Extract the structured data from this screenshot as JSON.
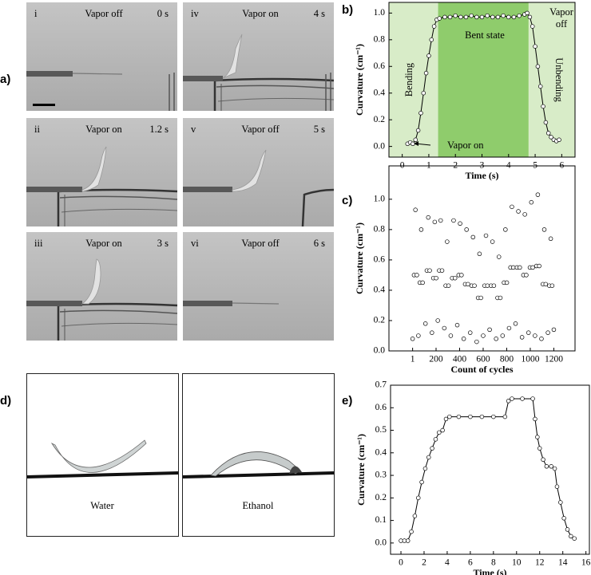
{
  "panel_labels": [
    "a)",
    "b)",
    "c)",
    "d)",
    "e)"
  ],
  "photos_a": [
    {
      "index": "i",
      "state": "Vapor off",
      "time": "0 s"
    },
    {
      "index": "iv",
      "state": "Vapor on",
      "time": "4 s"
    },
    {
      "index": "ii",
      "state": "Vapor on",
      "time": "1.2 s"
    },
    {
      "index": "v",
      "state": "Vapor off",
      "time": "5 s"
    },
    {
      "index": "iii",
      "state": "Vapor on",
      "time": "3 s"
    },
    {
      "index": "vi",
      "state": "Vapor off",
      "time": "6 s"
    }
  ],
  "photos_d": [
    "Water",
    "Ethanol"
  ],
  "chart_data": [
    {
      "type": "line",
      "xlabel": "Time (s)",
      "ylabel": "Curvature (cm⁻¹)",
      "background": "#d8ecc8",
      "shaded": [
        {
          "range": [
            1.35,
            4.75
          ],
          "color": "#8fcc6c"
        }
      ],
      "annotations": [
        "Bending",
        "Bent state",
        "Vapor",
        "off",
        "Unbending",
        "Vapor on"
      ],
      "x": [
        0.2,
        0.3,
        0.4,
        0.5,
        0.6,
        0.7,
        0.8,
        0.9,
        1.0,
        1.1,
        1.2,
        1.3,
        1.4,
        1.6,
        1.8,
        2.0,
        2.2,
        2.4,
        2.6,
        2.8,
        3.0,
        3.2,
        3.4,
        3.6,
        3.8,
        4.0,
        4.2,
        4.4,
        4.6,
        4.7,
        4.8,
        4.9,
        5.0,
        5.1,
        5.2,
        5.3,
        5.4,
        5.5,
        5.6,
        5.7,
        5.8,
        5.9
      ],
      "values": [
        0.02,
        0.03,
        0.02,
        0.05,
        0.12,
        0.25,
        0.4,
        0.55,
        0.68,
        0.8,
        0.9,
        0.95,
        0.96,
        0.97,
        0.97,
        0.98,
        0.97,
        0.97,
        0.98,
        0.97,
        0.97,
        0.98,
        0.97,
        0.97,
        0.98,
        0.97,
        0.97,
        0.98,
        0.99,
        1.0,
        0.97,
        0.9,
        0.75,
        0.6,
        0.45,
        0.3,
        0.18,
        0.1,
        0.07,
        0.05,
        0.04,
        0.05
      ],
      "color": "#000000",
      "marker": "open-circle",
      "xlim": [
        -0.5,
        6.5
      ],
      "ylim": [
        -0.08,
        1.08
      ],
      "xticks": [
        0,
        1,
        2,
        3,
        4,
        5,
        6
      ],
      "yticks": [
        {
          "value": 0,
          "label": "0.0"
        },
        0.2,
        0.4,
        0.6,
        0.8,
        {
          "value": 1,
          "label": "1.0"
        }
      ]
    },
    {
      "type": "scatter",
      "xlabel": "Count of cycles",
      "ylabel": "Curvature (cm⁻¹)",
      "x": [
        1,
        13,
        25,
        37,
        50,
        62,
        74,
        86,
        110,
        122,
        134,
        146,
        165,
        177,
        189,
        201,
        215,
        227,
        239,
        251,
        270,
        282,
        294,
        306,
        325,
        337,
        349,
        361,
        380,
        392,
        404,
        416,
        435,
        447,
        459,
        471,
        490,
        502,
        514,
        526,
        545,
        557,
        569,
        581,
        600,
        612,
        624,
        636,
        655,
        667,
        679,
        691,
        710,
        722,
        734,
        746,
        765,
        777,
        789,
        801,
        820,
        832,
        844,
        856,
        875,
        887,
        899,
        911,
        930,
        942,
        954,
        966,
        985,
        997,
        1009,
        1021,
        1040,
        1052,
        1064,
        1076,
        1095,
        1107,
        1119,
        1131,
        1150,
        1162,
        1174,
        1186,
        1200
      ],
      "values": [
        0.08,
        0.5,
        0.93,
        0.5,
        0.1,
        0.45,
        0.8,
        0.45,
        0.18,
        0.53,
        0.88,
        0.53,
        0.12,
        0.48,
        0.85,
        0.48,
        0.2,
        0.53,
        0.86,
        0.53,
        0.15,
        0.43,
        0.72,
        0.43,
        0.1,
        0.48,
        0.86,
        0.48,
        0.17,
        0.5,
        0.84,
        0.5,
        0.08,
        0.44,
        0.8,
        0.44,
        0.12,
        0.43,
        0.75,
        0.43,
        0.06,
        0.35,
        0.64,
        0.35,
        0.1,
        0.43,
        0.76,
        0.43,
        0.14,
        0.43,
        0.72,
        0.43,
        0.08,
        0.35,
        0.62,
        0.35,
        0.1,
        0.45,
        0.8,
        0.45,
        0.15,
        0.55,
        0.95,
        0.55,
        0.18,
        0.55,
        0.92,
        0.55,
        0.09,
        0.5,
        0.9,
        0.5,
        0.12,
        0.55,
        0.98,
        0.55,
        0.1,
        0.56,
        1.03,
        0.56,
        0.08,
        0.44,
        0.8,
        0.44,
        0.12,
        0.43,
        0.74,
        0.43,
        0.14
      ],
      "color": "#000000",
      "marker": "open-circle",
      "xlim": [
        -200,
        1380
      ],
      "ylim": [
        0,
        1.22
      ],
      "xticks": [
        1,
        200,
        400,
        600,
        800,
        1000,
        1200
      ],
      "yticks": [
        {
          "value": 0,
          "label": "0.0"
        },
        0.2,
        0.4,
        0.6,
        0.8,
        {
          "value": 1,
          "label": "1.0"
        }
      ]
    },
    {
      "type": "line",
      "xlabel": "Time (s)",
      "ylabel": "Curvature (cm⁻¹)",
      "x": [
        0,
        0.3,
        0.6,
        0.9,
        1.2,
        1.5,
        1.8,
        2.1,
        2.4,
        2.7,
        3.0,
        3.3,
        3.6,
        3.9,
        4.2,
        5,
        6,
        7,
        8,
        9,
        9.3,
        9.6,
        10.5,
        11.4,
        11.6,
        11.8,
        12.0,
        12.3,
        12.6,
        13.0,
        13.3,
        13.5,
        13.8,
        14.1,
        14.4,
        14.7,
        15.0
      ],
      "values": [
        0.01,
        0.01,
        0.01,
        0.05,
        0.12,
        0.2,
        0.27,
        0.33,
        0.38,
        0.42,
        0.46,
        0.49,
        0.5,
        0.55,
        0.56,
        0.56,
        0.56,
        0.56,
        0.56,
        0.56,
        0.63,
        0.64,
        0.64,
        0.64,
        0.55,
        0.47,
        0.42,
        0.37,
        0.34,
        0.34,
        0.33,
        0.25,
        0.18,
        0.11,
        0.06,
        0.03,
        0.02
      ],
      "color": "#000000",
      "marker": "open-circle",
      "xlim": [
        -0.9,
        16.3
      ],
      "ylim": [
        -0.05,
        0.7
      ],
      "xticks": [
        0,
        2,
        4,
        6,
        8,
        10,
        12,
        14,
        16
      ],
      "yticks": [
        {
          "value": 0,
          "label": "0.0"
        },
        0.1,
        0.2,
        0.3,
        0.4,
        0.5,
        0.6,
        0.7
      ]
    }
  ]
}
